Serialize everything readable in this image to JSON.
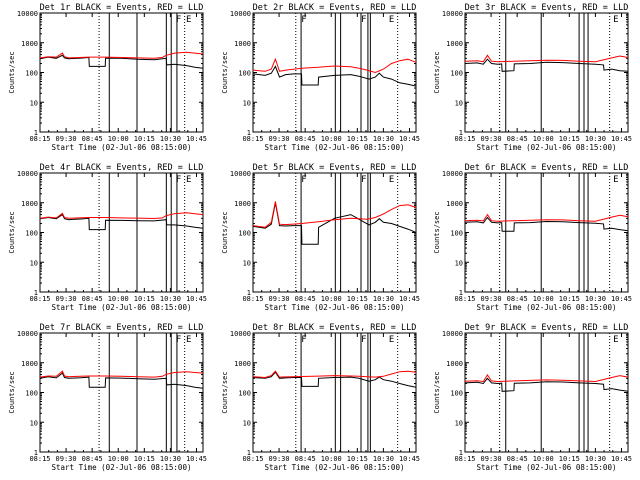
{
  "figure": {
    "xlabel": "Start Time (02-Jul-06 08:15:00)",
    "ylabel": "Counts/sec",
    "x_ticks": [
      "08:15",
      "09:30",
      "08:45",
      "10:00",
      "10:15",
      "10:30",
      "10:45"
    ],
    "y_ticks": [
      "1",
      "10",
      "100",
      "1000",
      "10000"
    ],
    "colors": {
      "events": "#000000",
      "lld": "#ff0000"
    }
  },
  "chart_data": [
    {
      "type": "line",
      "title": "Det 1r BLACK = Events, RED = LLD",
      "y_scale": "log",
      "ylim": [
        1,
        10000
      ],
      "x_range_min": [
        0,
        40
      ],
      "vlines_dotted": [
        14.5,
        35.5
      ],
      "vlines_solid": [
        17,
        23.8,
        31,
        32.2,
        33.6
      ],
      "markers": [
        {
          "label": "F",
          "x": 34
        },
        {
          "label": "E",
          "x": 36.5
        }
      ],
      "series": [
        {
          "name": "BLACK = Events",
          "x": [
            0,
            2,
            4,
            5.5,
            6,
            7,
            8,
            10,
            12,
            12.1,
            16,
            16.1,
            20,
            24,
            28,
            31,
            31.1,
            33,
            36,
            38,
            40
          ],
          "y": [
            290,
            330,
            300,
            380,
            310,
            290,
            295,
            305,
            320,
            160,
            160,
            305,
            300,
            280,
            270,
            300,
            180,
            190,
            170,
            150,
            140
          ]
        },
        {
          "name": "RED = LLD",
          "x": [
            0,
            2,
            4,
            5.5,
            6,
            7,
            8,
            12,
            16,
            20,
            24,
            28,
            30,
            31,
            33,
            36,
            38,
            40
          ],
          "y": [
            310,
            340,
            330,
            450,
            340,
            310,
            315,
            330,
            330,
            320,
            310,
            300,
            320,
            380,
            450,
            480,
            450,
            420
          ]
        }
      ]
    },
    {
      "type": "line",
      "title": "Det 2r BLACK = Events, RED = LLD",
      "y_scale": "log",
      "ylim": [
        1,
        10000
      ],
      "x_range_min": [
        0,
        40
      ],
      "vlines_dotted": [
        10.5,
        35.5
      ],
      "vlines_solid": [
        11.8,
        20.2,
        21.5,
        26.5,
        28.2,
        28.8
      ],
      "markers": [
        {
          "label": "F",
          "x": 12.5
        },
        {
          "label": "F",
          "x": 27.2
        },
        {
          "label": "E",
          "x": 34
        }
      ],
      "series": [
        {
          "name": "BLACK = Events",
          "x": [
            0,
            3,
            4.5,
            5.5,
            6.5,
            8,
            10,
            11.9,
            12,
            16,
            16.1,
            20,
            24,
            26,
            28.5,
            30,
            31,
            32,
            34,
            36,
            38,
            40
          ],
          "y": [
            90,
            80,
            95,
            160,
            70,
            85,
            90,
            90,
            38,
            38,
            70,
            80,
            85,
            75,
            60,
            70,
            95,
            70,
            60,
            45,
            40,
            35
          ]
        },
        {
          "name": "RED = LLD",
          "x": [
            0,
            3,
            4.5,
            5.5,
            6.5,
            8,
            12,
            16,
            20,
            24,
            26,
            28,
            30,
            32,
            34,
            36,
            38,
            40
          ],
          "y": [
            120,
            110,
            130,
            280,
            110,
            120,
            140,
            150,
            165,
            155,
            140,
            120,
            100,
            130,
            200,
            250,
            280,
            220
          ]
        }
      ]
    },
    {
      "type": "line",
      "title": "Det 3r BLACK = Events, RED = LLD",
      "y_scale": "log",
      "ylim": [
        1,
        10000
      ],
      "x_range_min": [
        0,
        40
      ],
      "vlines_dotted": [
        8.5,
        35.5
      ],
      "vlines_solid": [
        10,
        18.7,
        28,
        29.2,
        30.2
      ],
      "markers": [
        {
          "label": "E",
          "x": 37
        }
      ],
      "series": [
        {
          "name": "BLACK = Events",
          "x": [
            0,
            3,
            4.5,
            5.5,
            6.5,
            8,
            9,
            9.1,
            12,
            12.1,
            16,
            20,
            24,
            28,
            32,
            34,
            34.1,
            36,
            38,
            40
          ],
          "y": [
            200,
            210,
            190,
            280,
            200,
            190,
            195,
            110,
            115,
            195,
            200,
            220,
            215,
            200,
            190,
            180,
            120,
            130,
            115,
            110
          ]
        },
        {
          "name": "RED = LLD",
          "x": [
            0,
            3,
            4.5,
            5.5,
            6.5,
            8,
            12,
            16,
            20,
            24,
            28,
            32,
            36,
            38,
            40
          ],
          "y": [
            240,
            250,
            230,
            380,
            240,
            230,
            240,
            250,
            260,
            255,
            240,
            230,
            310,
            360,
            320
          ]
        }
      ]
    },
    {
      "type": "line",
      "title": "Det 4r BLACK = Events, RED = LLD",
      "y_scale": "log",
      "ylim": [
        1,
        10000
      ],
      "x_range_min": [
        0,
        40
      ],
      "vlines_dotted": [
        14.5,
        35.5
      ],
      "vlines_solid": [
        17,
        23.8,
        31,
        32.2,
        33.6
      ],
      "markers": [
        {
          "label": "F",
          "x": 34
        },
        {
          "label": "E",
          "x": 36.5
        }
      ],
      "series": [
        {
          "name": "BLACK = Events",
          "x": [
            0,
            2,
            4,
            5.5,
            6,
            7,
            8,
            10,
            12,
            12.1,
            16,
            16.1,
            20,
            24,
            28,
            31,
            31.1,
            33,
            36,
            38,
            40
          ],
          "y": [
            290,
            320,
            290,
            400,
            290,
            270,
            275,
            285,
            300,
            125,
            125,
            260,
            255,
            250,
            245,
            270,
            180,
            180,
            165,
            150,
            140
          ]
        },
        {
          "name": "RED = LLD",
          "x": [
            0,
            2,
            4,
            5.5,
            6,
            7,
            8,
            12,
            16,
            20,
            24,
            28,
            30,
            31,
            33,
            36,
            38,
            40
          ],
          "y": [
            300,
            330,
            310,
            440,
            320,
            300,
            305,
            320,
            320,
            310,
            305,
            295,
            310,
            370,
            430,
            460,
            430,
            400
          ]
        }
      ]
    },
    {
      "type": "line",
      "title": "Det 5r BLACK = Events, RED = LLD",
      "y_scale": "log",
      "ylim": [
        1,
        10000
      ],
      "x_range_min": [
        0,
        40
      ],
      "vlines_dotted": [
        10.5,
        35.5
      ],
      "vlines_solid": [
        11.8,
        20.2,
        21.5,
        26.5,
        28.2,
        28.8
      ],
      "markers": [
        {
          "label": "F",
          "x": 12.5
        },
        {
          "label": "F",
          "x": 27.2
        },
        {
          "label": "E",
          "x": 34
        }
      ],
      "series": [
        {
          "name": "BLACK = Events",
          "x": [
            0,
            3,
            4.5,
            5.5,
            6.5,
            8,
            10,
            11.9,
            12,
            16,
            16.1,
            20,
            24,
            26,
            28.5,
            30,
            31,
            32,
            34,
            36,
            38,
            40
          ],
          "y": [
            160,
            140,
            190,
            1000,
            170,
            165,
            170,
            170,
            40,
            40,
            150,
            300,
            400,
            280,
            180,
            220,
            290,
            220,
            200,
            160,
            130,
            100
          ]
        },
        {
          "name": "RED = LLD",
          "x": [
            0,
            3,
            4.5,
            5.5,
            6.5,
            8,
            12,
            16,
            20,
            24,
            26,
            28,
            30,
            32,
            34,
            36,
            38,
            40
          ],
          "y": [
            170,
            150,
            220,
            1100,
            190,
            185,
            200,
            230,
            270,
            300,
            290,
            280,
            320,
            420,
            600,
            800,
            850,
            700
          ]
        }
      ]
    },
    {
      "type": "line",
      "title": "Det 6r BLACK = Events, RED = LLD",
      "y_scale": "log",
      "ylim": [
        1,
        10000
      ],
      "x_range_min": [
        0,
        40
      ],
      "vlines_dotted": [
        8.5,
        35.5
      ],
      "vlines_solid": [
        10,
        18.7,
        28,
        29.2,
        30.2
      ],
      "markers": [
        {
          "label": "E",
          "x": 37
        }
      ],
      "series": [
        {
          "name": "BLACK = Events",
          "x": [
            0,
            3,
            4.5,
            5.5,
            6.5,
            8,
            9,
            9.1,
            12,
            12.1,
            16,
            20,
            24,
            28,
            32,
            34,
            34.1,
            36,
            38,
            40
          ],
          "y": [
            220,
            230,
            210,
            320,
            220,
            210,
            215,
            110,
            110,
            210,
            215,
            235,
            230,
            215,
            205,
            195,
            130,
            140,
            125,
            115
          ]
        },
        {
          "name": "RED = LLD",
          "x": [
            0,
            3,
            4.5,
            5.5,
            6.5,
            8,
            12,
            16,
            20,
            24,
            28,
            32,
            36,
            38,
            40
          ],
          "y": [
            250,
            260,
            245,
            400,
            250,
            240,
            250,
            260,
            270,
            265,
            250,
            240,
            330,
            380,
            340
          ]
        }
      ]
    },
    {
      "type": "line",
      "title": "Det 7r BLACK = Events, RED = LLD",
      "y_scale": "log",
      "ylim": [
        1,
        10000
      ],
      "x_range_min": [
        0,
        40
      ],
      "vlines_dotted": [
        14.5,
        35.5
      ],
      "vlines_solid": [
        17,
        23.8,
        31,
        32.2,
        33.6
      ],
      "markers": [
        {
          "label": "F",
          "x": 34
        },
        {
          "label": "E",
          "x": 36.5
        }
      ],
      "series": [
        {
          "name": "BLACK = Events",
          "x": [
            0,
            2,
            4,
            5.5,
            6,
            7,
            8,
            10,
            12,
            12.1,
            16,
            16.1,
            20,
            24,
            28,
            31,
            31.1,
            33,
            36,
            38,
            40
          ],
          "y": [
            300,
            340,
            310,
            450,
            320,
            300,
            305,
            315,
            330,
            150,
            150,
            310,
            305,
            290,
            280,
            300,
            180,
            190,
            170,
            150,
            140
          ]
        },
        {
          "name": "RED = LLD",
          "x": [
            0,
            2,
            4,
            5.5,
            6,
            7,
            8,
            12,
            16,
            20,
            24,
            28,
            30,
            31,
            33,
            36,
            38,
            40
          ],
          "y": [
            330,
            360,
            350,
            520,
            360,
            340,
            345,
            360,
            360,
            350,
            340,
            330,
            350,
            410,
            470,
            500,
            470,
            450
          ]
        }
      ]
    },
    {
      "type": "line",
      "title": "Det 8r BLACK = Events, RED = LLD",
      "y_scale": "log",
      "ylim": [
        1,
        10000
      ],
      "x_range_min": [
        0,
        40
      ],
      "vlines_dotted": [
        10.5,
        35.5
      ],
      "vlines_solid": [
        11.8,
        20.2,
        21.5,
        26.5,
        28.2,
        28.8
      ],
      "markers": [
        {
          "label": "F",
          "x": 12.5
        },
        {
          "label": "F",
          "x": 27.2
        },
        {
          "label": "E",
          "x": 34
        }
      ],
      "series": [
        {
          "name": "BLACK = Events",
          "x": [
            0,
            3,
            4.5,
            5.5,
            6.5,
            8,
            10,
            11.9,
            12,
            16,
            16.1,
            20,
            24,
            26,
            28.5,
            30,
            31,
            32,
            34,
            36,
            38,
            40
          ],
          "y": [
            320,
            300,
            340,
            480,
            300,
            310,
            320,
            320,
            160,
            160,
            300,
            320,
            330,
            300,
            240,
            270,
            330,
            270,
            240,
            200,
            170,
            150
          ]
        },
        {
          "name": "RED = LLD",
          "x": [
            0,
            3,
            4.5,
            5.5,
            6.5,
            8,
            12,
            16,
            20,
            24,
            26,
            28,
            30,
            32,
            34,
            36,
            38,
            40
          ],
          "y": [
            340,
            320,
            370,
            520,
            330,
            335,
            345,
            355,
            370,
            360,
            350,
            340,
            330,
            350,
            420,
            500,
            520,
            480
          ]
        }
      ]
    },
    {
      "type": "line",
      "title": "Det 9r BLACK = Events, RED = LLD",
      "y_scale": "log",
      "ylim": [
        1,
        10000
      ],
      "x_range_min": [
        0,
        40
      ],
      "vlines_dotted": [
        8.5,
        35.5
      ],
      "vlines_solid": [
        10,
        18.7,
        28,
        29.2,
        30.2
      ],
      "markers": [
        {
          "label": "E",
          "x": 37
        }
      ],
      "series": [
        {
          "name": "BLACK = Events",
          "x": [
            0,
            3,
            4.5,
            5.5,
            6.5,
            8,
            9,
            9.1,
            12,
            12.1,
            16,
            20,
            24,
            28,
            32,
            34,
            34.1,
            36,
            38,
            40
          ],
          "y": [
            210,
            220,
            200,
            300,
            210,
            200,
            205,
            110,
            115,
            205,
            210,
            230,
            225,
            210,
            200,
            190,
            125,
            135,
            120,
            110
          ]
        },
        {
          "name": "RED = LLD",
          "x": [
            0,
            3,
            4.5,
            5.5,
            6.5,
            8,
            12,
            16,
            20,
            24,
            28,
            32,
            36,
            38,
            40
          ],
          "y": [
            240,
            250,
            235,
            390,
            245,
            235,
            245,
            255,
            265,
            260,
            245,
            235,
            320,
            370,
            330
          ]
        }
      ]
    }
  ]
}
